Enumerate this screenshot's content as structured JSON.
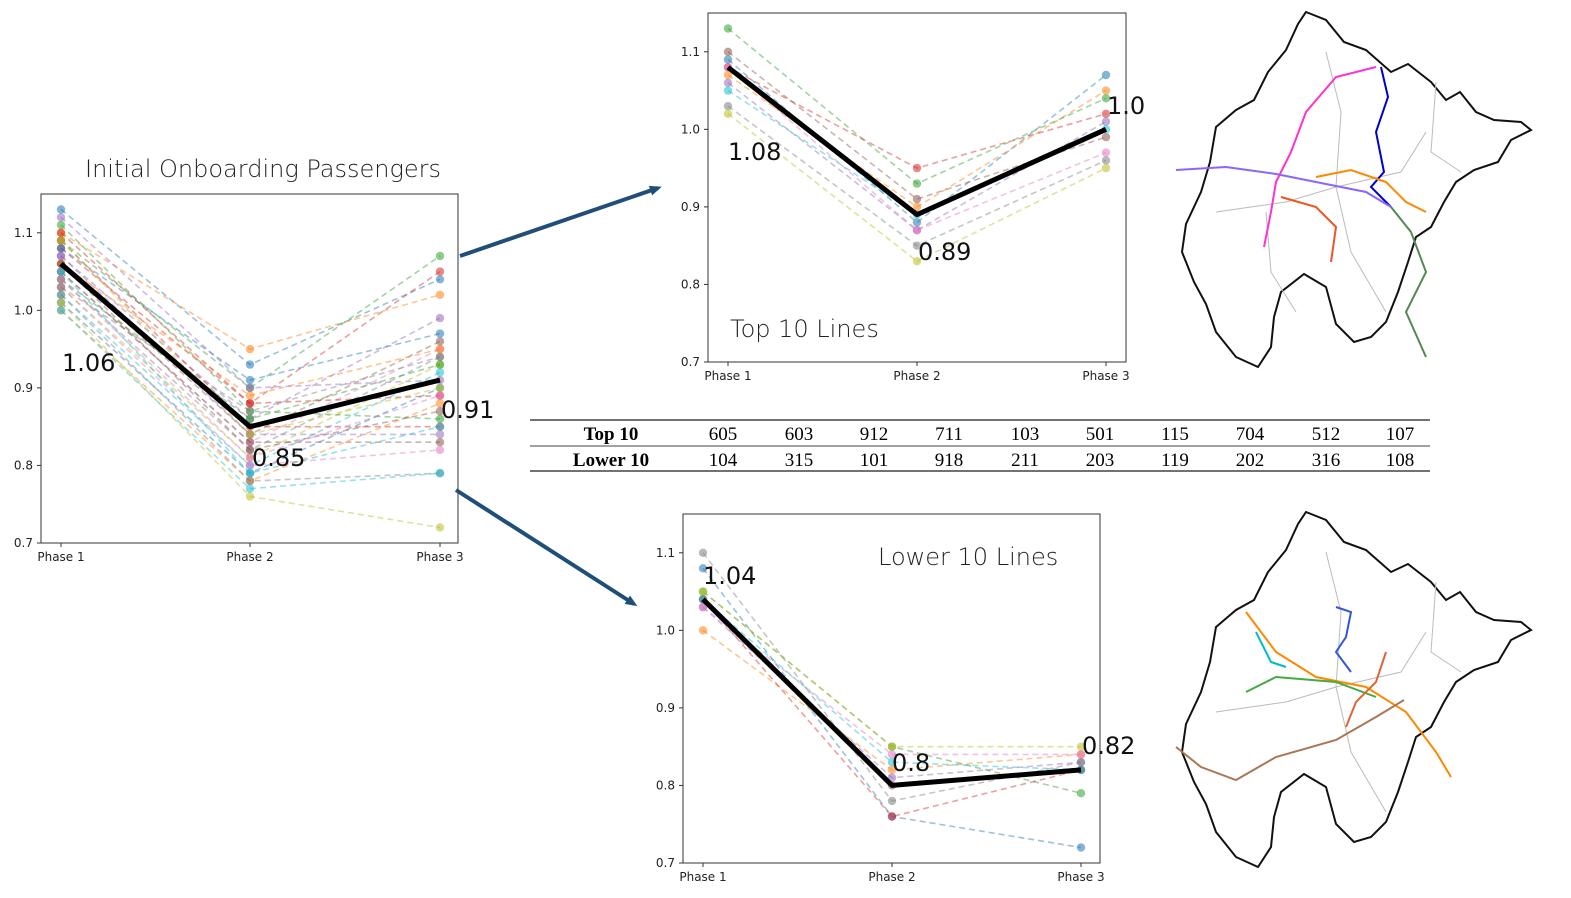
{
  "colors": {
    "mean_line": "#000000",
    "arrow": "#1f4e79",
    "palette": [
      "#1f77b4",
      "#ff7f0e",
      "#2ca02c",
      "#d62728",
      "#9467bd",
      "#8c564b",
      "#e377c2",
      "#7f7f7f",
      "#bcbd22",
      "#17becf"
    ]
  },
  "chart_data": [
    {
      "id": "initial",
      "type": "line",
      "title": "Initial Onboarding Passengers",
      "categories": [
        "Phase 1",
        "Phase 2",
        "Phase 3"
      ],
      "ylim": [
        0.7,
        1.15
      ],
      "yticks": [
        "0.7",
        "0.8",
        "0.9",
        "1.0",
        "1.1"
      ],
      "mean": {
        "values": [
          1.06,
          0.85,
          0.91
        ],
        "labels": [
          "1.06",
          "0.85",
          "0.91"
        ]
      },
      "series": [
        {
          "values": [
            1.13,
            0.93,
            1.04
          ]
        },
        {
          "values": [
            1.1,
            0.95,
            1.02
          ]
        },
        {
          "values": [
            1.09,
            0.9,
            1.07
          ]
        },
        {
          "values": [
            1.08,
            0.88,
            1.05
          ]
        },
        {
          "values": [
            1.07,
            0.86,
            0.99
          ]
        },
        {
          "values": [
            1.06,
            0.84,
            0.96
          ]
        },
        {
          "values": [
            1.05,
            0.83,
            0.95
          ]
        },
        {
          "values": [
            1.04,
            0.82,
            0.94
          ]
        },
        {
          "values": [
            1.03,
            0.81,
            0.93
          ]
        },
        {
          "values": [
            1.02,
            0.8,
            0.92
          ]
        },
        {
          "values": [
            1.01,
            0.79,
            0.9
          ]
        },
        {
          "values": [
            1.0,
            0.78,
            0.88
          ]
        },
        {
          "values": [
            1.11,
            0.87,
            0.86
          ]
        },
        {
          "values": [
            1.09,
            0.85,
            0.85
          ]
        },
        {
          "values": [
            1.07,
            0.84,
            0.84
          ]
        },
        {
          "values": [
            1.05,
            0.83,
            0.83
          ]
        },
        {
          "values": [
            1.03,
            0.8,
            0.82
          ]
        },
        {
          "values": [
            1.02,
            0.78,
            0.79
          ]
        },
        {
          "values": [
            1.01,
            0.76,
            0.72
          ]
        },
        {
          "values": [
            1.0,
            0.77,
            0.79
          ]
        },
        {
          "values": [
            1.08,
            0.91,
            0.97
          ]
        },
        {
          "values": [
            1.06,
            0.89,
            0.95
          ]
        },
        {
          "values": [
            1.04,
            0.86,
            0.93
          ]
        },
        {
          "values": [
            1.1,
            0.88,
            0.89
          ]
        },
        {
          "values": [
            1.12,
            0.9,
            0.91
          ]
        },
        {
          "values": [
            1.06,
            0.82,
            0.87
          ]
        },
        {
          "values": [
            1.04,
            0.81,
            0.89
          ]
        },
        {
          "values": [
            1.03,
            0.87,
            0.94
          ]
        },
        {
          "values": [
            1.09,
            0.84,
            0.9
          ]
        },
        {
          "values": [
            1.05,
            0.79,
            0.85
          ]
        }
      ]
    },
    {
      "id": "top10",
      "type": "line",
      "title": "Top 10 Lines",
      "categories": [
        "Phase 1",
        "Phase 2",
        "Phase 3"
      ],
      "ylim": [
        0.7,
        1.15
      ],
      "yticks": [
        "0.7",
        "0.8",
        "0.9",
        "1.0",
        "1.1"
      ],
      "mean": {
        "values": [
          1.08,
          0.89,
          1.0
        ],
        "labels": [
          "1.08",
          "0.89",
          "1.0"
        ]
      },
      "series": [
        {
          "values": [
            1.09,
            0.88,
            1.07
          ]
        },
        {
          "values": [
            1.07,
            0.9,
            1.05
          ]
        },
        {
          "values": [
            1.13,
            0.93,
            1.04
          ]
        },
        {
          "values": [
            1.08,
            0.95,
            1.02
          ]
        },
        {
          "values": [
            1.06,
            0.87,
            1.01
          ]
        },
        {
          "values": [
            1.1,
            0.91,
            0.99
          ]
        },
        {
          "values": [
            1.08,
            0.87,
            0.97
          ]
        },
        {
          "values": [
            1.03,
            0.85,
            0.96
          ]
        },
        {
          "values": [
            1.02,
            0.83,
            0.95
          ]
        },
        {
          "values": [
            1.05,
            0.89,
            1.0
          ]
        }
      ]
    },
    {
      "id": "lower10",
      "type": "line",
      "title": "Lower 10 Lines",
      "categories": [
        "Phase 1",
        "Phase 2",
        "Phase 3"
      ],
      "ylim": [
        0.7,
        1.15
      ],
      "yticks": [
        "0.7",
        "0.8",
        "0.9",
        "1.0",
        "1.1"
      ],
      "mean": {
        "values": [
          1.04,
          0.8,
          0.82
        ],
        "labels": [
          "1.04",
          "0.8",
          "0.82"
        ]
      },
      "series": [
        {
          "values": [
            1.08,
            0.76,
            0.72
          ]
        },
        {
          "values": [
            1.0,
            0.82,
            0.84
          ]
        },
        {
          "values": [
            1.05,
            0.85,
            0.79
          ]
        },
        {
          "values": [
            1.04,
            0.76,
            0.82
          ]
        },
        {
          "values": [
            1.03,
            0.81,
            0.83
          ]
        },
        {
          "values": [
            1.04,
            0.8,
            0.82
          ]
        },
        {
          "values": [
            1.03,
            0.84,
            0.84
          ]
        },
        {
          "values": [
            1.1,
            0.78,
            0.83
          ]
        },
        {
          "values": [
            1.05,
            0.85,
            0.85
          ]
        },
        {
          "values": [
            1.04,
            0.83,
            0.82
          ]
        }
      ]
    }
  ],
  "table": {
    "rows": [
      {
        "label": "Top 10",
        "values": [
          "605",
          "603",
          "912",
          "711",
          "103",
          "501",
          "115",
          "704",
          "512",
          "107"
        ]
      },
      {
        "label": "Lower 10",
        "values": [
          "104",
          "315",
          "101",
          "918",
          "211",
          "203",
          "119",
          "202",
          "316",
          "108"
        ]
      }
    ]
  },
  "maps": [
    {
      "id": "map-top",
      "colors": [
        "#0000cc",
        "#ff33cc",
        "#8866ff",
        "#ff8800",
        "#ee5522",
        "#558855",
        "#9944aa",
        "#ffaa33"
      ]
    },
    {
      "id": "map-lower",
      "colors": [
        "#3355dd",
        "#ff8800",
        "#00bbcc",
        "#44aa44",
        "#dd6633",
        "#aa7755",
        "#999999",
        "#ffaa00"
      ]
    }
  ]
}
